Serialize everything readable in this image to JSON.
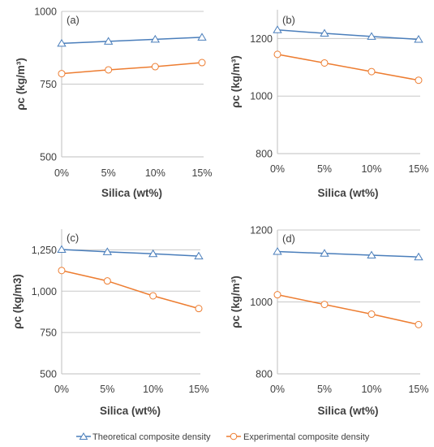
{
  "chart_data": [
    {
      "type": "line",
      "panel_label": "(a)",
      "categories": [
        "0%",
        "5%",
        "10%",
        "15%"
      ],
      "xlabel": "Silica (wt%)",
      "ylabel": "ρc (kg/m³)",
      "ylim": [
        500,
        1000
      ],
      "yticks": [
        "500",
        "750",
        "1000"
      ],
      "ytick_values": [
        500,
        750,
        1000
      ],
      "grid": "horizontal",
      "series": [
        {
          "name": "Theoretical composite density",
          "values": [
            890,
            897,
            904,
            911
          ]
        },
        {
          "name": "Experimental composite density",
          "values": [
            786,
            799,
            810,
            824
          ]
        }
      ]
    },
    {
      "type": "line",
      "panel_label": "(b)",
      "categories": [
        "0%",
        "5%",
        "10%",
        "15%"
      ],
      "xlabel": "Silica (wt%)",
      "ylabel": "ρc (kg/m³)",
      "ylim": [
        800,
        1300
      ],
      "yticks": [
        "800",
        "1000",
        "1200"
      ],
      "ytick_values": [
        800,
        1000,
        1200
      ],
      "grid": "horizontal",
      "series": [
        {
          "name": "Theoretical composite density",
          "values": [
            1230,
            1218,
            1207,
            1197
          ]
        },
        {
          "name": "Experimental composite density",
          "values": [
            1145,
            1115,
            1085,
            1055
          ]
        }
      ]
    },
    {
      "type": "line",
      "panel_label": "(c)",
      "categories": [
        "0%",
        "5%",
        "10%",
        "15%"
      ],
      "xlabel": "Silica (wt%)",
      "ylabel": "ρc (kg/m3)",
      "ylim": [
        500,
        1375
      ],
      "yticks": [
        "500",
        "750",
        "1,000",
        "1,250"
      ],
      "ytick_values": [
        500,
        750,
        1000,
        1250
      ],
      "grid": "horizontal",
      "series": [
        {
          "name": "Theoretical composite density",
          "values": [
            1252,
            1238,
            1226,
            1212
          ]
        },
        {
          "name": "Experimental composite density",
          "values": [
            1125,
            1062,
            972,
            895
          ]
        }
      ]
    },
    {
      "type": "line",
      "panel_label": "(d)",
      "categories": [
        "0%",
        "5%",
        "10%",
        "15%"
      ],
      "xlabel": "Silica (wt%)",
      "ylabel": "ρc (kg/m³)",
      "ylim": [
        800,
        1200
      ],
      "yticks": [
        "800",
        "1000",
        "1200"
      ],
      "ytick_values": [
        800,
        1000,
        1200
      ],
      "grid": "horizontal",
      "series": [
        {
          "name": "Theoretical composite density",
          "values": [
            1140,
            1135,
            1130,
            1125
          ]
        },
        {
          "name": "Experimental composite density",
          "values": [
            1020,
            993,
            966,
            937
          ]
        }
      ]
    }
  ],
  "legend": {
    "placement": "bottom",
    "items": [
      {
        "label": "Theoretical composite density",
        "marker": "triangle",
        "color": "#4a7ebb"
      },
      {
        "label": "Experimental composite density",
        "marker": "circle",
        "color": "#ed7d31"
      }
    ]
  },
  "colors": {
    "theoretical": "#4a7ebb",
    "experimental": "#ed7d31",
    "axis": "#bfbfbf",
    "grid": "#c8c8c8",
    "text": "#404040"
  }
}
